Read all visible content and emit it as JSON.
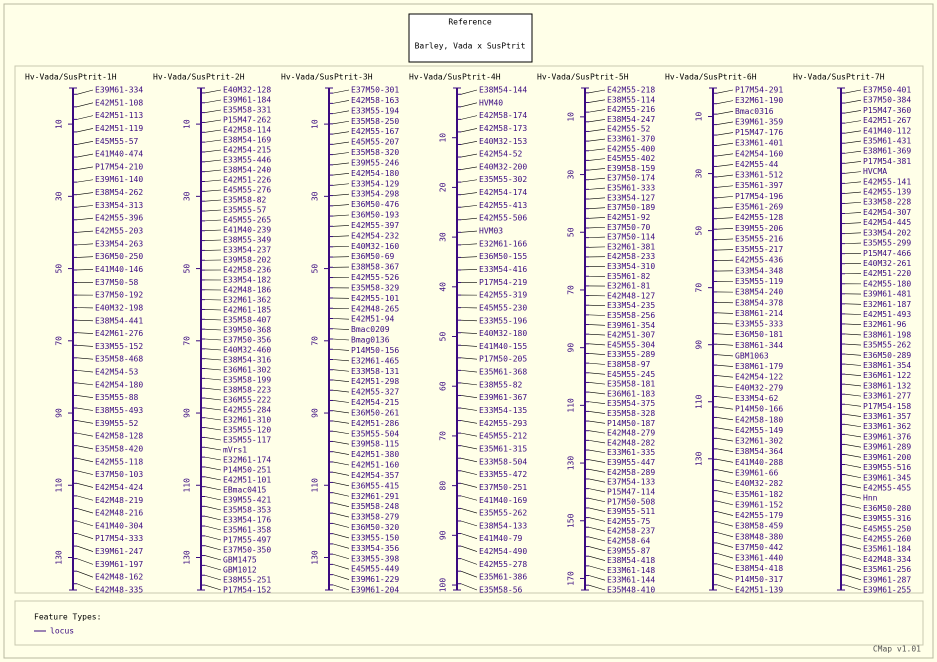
{
  "header": {
    "title": "Reference",
    "subtitle": "Barley, Vada x SusPtrit"
  },
  "maps": [
    {
      "title": "Hv-Vada/SusPtrit-1H",
      "range": [
        0,
        139
      ],
      "ticks": [
        10,
        30,
        50,
        70,
        90,
        110,
        130
      ],
      "labels": [
        "E39M61-334",
        "E42M51-108",
        "E42M51-113",
        "E42M51-119",
        "E45M55-57",
        "E41M40-474",
        "P17M54-210",
        "E39M61-140",
        "E38M54-262",
        "E33M54-313",
        "E42M55-396",
        "E42M55-203",
        "E33M54-263",
        "E36M50-250",
        "E41M40-146",
        "E37M50-58",
        "E37M50-192",
        "E40M32-198",
        "E38M54-441",
        "E42M61-276",
        "E33M55-152",
        "E35M58-468",
        "E42M54-53",
        "E42M54-180",
        "E35M55-88",
        "E38M55-493",
        "E39M55-52",
        "E42M58-128",
        "E35M58-420",
        "E42M55-118",
        "E37M50-103",
        "E42M54-424",
        "E42M48-219",
        "E42M48-216",
        "E41M40-304",
        "P17M54-333",
        "E39M61-247",
        "E39M61-197",
        "E42M48-162",
        "E42M48-335"
      ]
    },
    {
      "title": "Hv-Vada/SusPtrit-2H",
      "range": [
        0,
        139
      ],
      "ticks": [
        10,
        30,
        50,
        70,
        90,
        110,
        130
      ],
      "labels": [
        "E40M32-128",
        "E39M61-184",
        "E35M58-331",
        "P15M47-262",
        "E42M58-114",
        "E38M54-169",
        "E42M54-215",
        "E33M55-446",
        "E38M54-240",
        "E42M51-226",
        "E45M55-276",
        "E35M58-82",
        "E35M55-57",
        "E45M55-265",
        "E41M40-239",
        "E38M55-349",
        "E33M54-237",
        "E39M58-202",
        "E42M58-236",
        "E33M54-182",
        "E42M48-186",
        "E32M61-362",
        "E42M61-185",
        "E35M58-407",
        "E39M50-368",
        "E37M50-356",
        "E40M32-460",
        "E38M54-316",
        "E36M61-302",
        "E35M58-199",
        "E38M58-223",
        "E36M55-222",
        "E42M55-284",
        "E32M61-310",
        "E35M55-120",
        "E35M55-117",
        "mVrs1",
        "E32M61-174",
        "P14M50-251",
        "E42M51-101",
        "EBmac0415",
        "E39M55-421",
        "E35M58-353",
        "E33M54-176",
        "E35M61-358",
        "P17M55-497",
        "E37M50-350",
        "GBM1475",
        "GBM1012",
        "E38M55-251",
        "P17M54-152"
      ]
    },
    {
      "title": "Hv-Vada/SusPtrit-3H",
      "range": [
        0,
        139
      ],
      "ticks": [
        10,
        30,
        50,
        70,
        90,
        110,
        130
      ],
      "labels": [
        "E37M50-301",
        "E42M58-163",
        "E33M55-194",
        "E35M58-250",
        "E42M55-167",
        "E45M55-207",
        "E35M58-320",
        "E39M55-246",
        "E42M54-180",
        "E33M54-129",
        "E33M54-298",
        "E36M50-476",
        "E36M50-193",
        "E42M55-397",
        "E42M54-232",
        "E40M32-160",
        "E36M50-69",
        "E38M58-367",
        "E42M55-526",
        "E35M58-329",
        "E42M55-101",
        "E42M48-265",
        "E42M51-94",
        "Bmac0209",
        "Bmag0136",
        "P14M50-156",
        "E32M61-465",
        "E33M58-131",
        "E42M51-298",
        "E42M55-327",
        "E42M54-215",
        "E36M50-261",
        "E42M51-286",
        "E35M55-504",
        "E39M58-115",
        "E42M51-380",
        "E42M51-160",
        "E42M54-357",
        "E36M55-415",
        "E32M61-291",
        "E35M58-248",
        "E33M58-279",
        "E36M50-320",
        "E33M55-150",
        "E33M54-356",
        "E33M55-398",
        "E45M55-449",
        "E39M61-229",
        "E39M61-204"
      ]
    },
    {
      "title": "Hv-Vada/SusPtrit-4H",
      "range": [
        0,
        101
      ],
      "ticks": [
        10,
        20,
        30,
        40,
        50,
        60,
        70,
        80,
        90,
        100
      ],
      "labels": [
        "E38M54-144",
        "HVM40",
        "E42M58-174",
        "E42M58-173",
        "E40M32-153",
        "E42M54-52",
        "E40M32-200",
        "E35M55-302",
        "E42M54-174",
        "E42M55-413",
        "E42M55-506",
        "HVM03",
        "E32M61-166",
        "E36M50-155",
        "E33M54-416",
        "P17M54-219",
        "E42M55-319",
        "E45M55-230",
        "E33M55-196",
        "E40M32-180",
        "E41M40-155",
        "P17M50-205",
        "E35M61-368",
        "E38M55-82",
        "E39M61-367",
        "E33M54-135",
        "E42M55-293",
        "E45M55-212",
        "E35M61-315",
        "E33M58-504",
        "E33M55-472",
        "E37M50-251",
        "E41M40-169",
        "E35M55-262",
        "E38M54-133",
        "E41M40-79",
        "E42M54-490",
        "E42M55-278",
        "E35M61-386",
        "E35M58-56"
      ]
    },
    {
      "title": "Hv-Vada/SusPtrit-5H",
      "range": [
        0,
        174
      ],
      "ticks": [
        10,
        30,
        50,
        70,
        90,
        110,
        130,
        150,
        170
      ],
      "labels": [
        "E42M55-218",
        "E38M55-114",
        "E42M55-216",
        "E38M54-247",
        "E42M55-52",
        "E33M61-370",
        "E42M55-400",
        "E45M55-402",
        "E39M58-159",
        "E37M50-174",
        "E35M61-333",
        "E33M54-127",
        "E37M50-189",
        "E42M51-92",
        "E37M50-70",
        "E37M50-114",
        "E32M61-381",
        "E42M58-233",
        "E33M54-310",
        "E35M61-82",
        "E32M61-81",
        "E42M48-127",
        "E33M54-235",
        "E35M58-256",
        "E39M61-354",
        "E42M51-307",
        "E45M55-304",
        "E33M55-289",
        "E38M58-97",
        "E45M55-245",
        "E35M58-181",
        "E36M61-183",
        "E35M54-375",
        "E35M58-328",
        "P14M50-187",
        "E42M48-279",
        "E42M48-282",
        "E33M61-335",
        "E39M55-447",
        "E42M58-289",
        "E37M54-133",
        "P15M47-114",
        "P17M50-508",
        "E39M55-511",
        "E42M55-75",
        "E42M58-237",
        "E42M58-64",
        "E39M55-87",
        "E38M54-418",
        "E33M61-148",
        "E33M61-144",
        "E35M48-410"
      ]
    },
    {
      "title": "Hv-Vada/SusPtrit-6H",
      "range": [
        0,
        176
      ],
      "ticks": [
        10,
        30,
        50,
        70,
        90,
        110,
        130
      ],
      "labels": [
        "P17M54-291",
        "E32M61-190",
        "Bmac0316",
        "E39M61-359",
        "P15M47-176",
        "E33M61-401",
        "E42M54-160",
        "E42M55-44",
        "E33M61-512",
        "E35M61-397",
        "P17M54-196",
        "E35M61-269",
        "E42M55-128",
        "E39M55-206",
        "E35M55-216",
        "E35M55-217",
        "E42M55-436",
        "E33M54-348",
        "E35M55-119",
        "E38M54-240",
        "E38M54-378",
        "E38M61-214",
        "E33M55-333",
        "E36M50-181",
        "E38M61-344",
        "GBM1063",
        "E38M61-179",
        "E42M54-122",
        "E40M32-279",
        "E33M54-62",
        "P14M50-166",
        "E42M58-180",
        "E42M55-149",
        "E32M61-302",
        "E38M54-364",
        "E41M40-288",
        "E39M61-66",
        "E40M32-282",
        "E35M61-182",
        "E39M61-152",
        "E42M55-179",
        "E38M58-459",
        "E38M48-380",
        "E37M50-442",
        "E33M61-440",
        "E38M54-418",
        "P14M50-317",
        "E42M51-139"
      ]
    },
    {
      "title": "Hv-Vada/SusPtrit-7H",
      "labels": [
        "E37M50-401",
        "E37M50-384",
        "P15M47-360",
        "E42M51-267",
        "E41M40-112",
        "E35M61-431",
        "E38M61-369",
        "P17M54-381",
        "HVCMA",
        "E42M55-141",
        "E42M55-139",
        "E33M58-228",
        "E42M54-307",
        "E42M54-445",
        "E33M54-202",
        "E35M55-299",
        "P15M47-466",
        "E40M32-261",
        "E42M51-220",
        "E42M55-180",
        "E39M61-481",
        "E32M61-187",
        "E42M51-493",
        "E32M61-96",
        "E38M61-198",
        "E35M55-262",
        "E36M50-289",
        "E38M61-354",
        "E36M61-122",
        "E38M61-132",
        "E33M61-277",
        "P17M54-158",
        "E33M61-357",
        "E33M61-362",
        "E39M61-376",
        "E39M61-289",
        "E39M61-200",
        "E39M55-516",
        "E39M61-345",
        "E42M55-455",
        "Hnn",
        "E36M50-280",
        "E39M55-316",
        "E45M55-250",
        "E42M55-260",
        "E35M61-184",
        "E42M48-334",
        "E35M61-256",
        "E39M61-287",
        "E39M61-255"
      ]
    }
  ],
  "legend": {
    "title": "Feature Types:",
    "items": [
      "locus"
    ]
  },
  "footer": "CMap v1.01"
}
